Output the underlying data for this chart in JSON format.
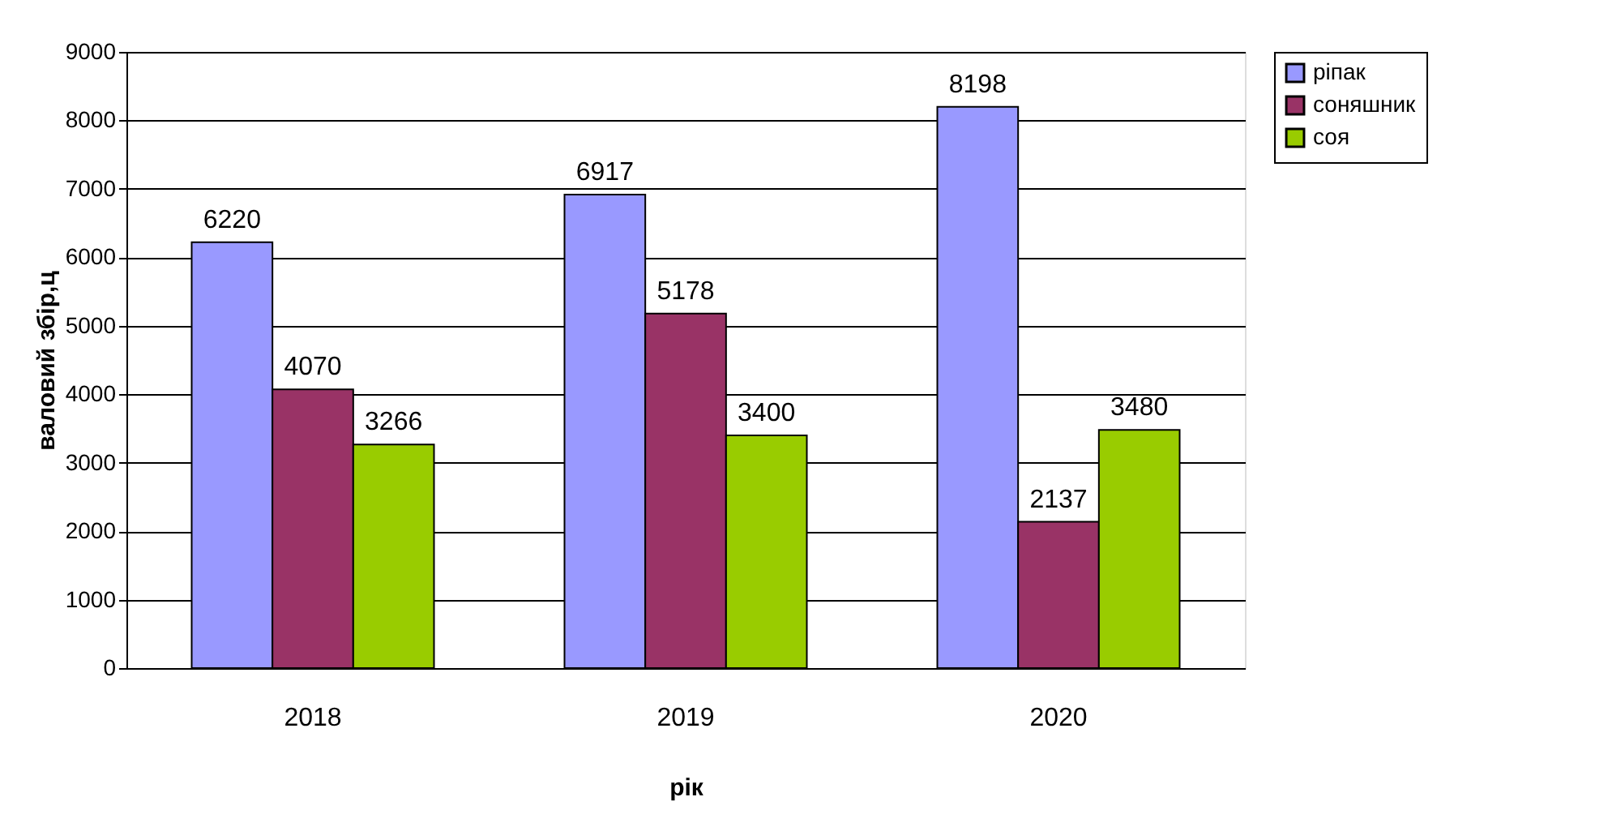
{
  "chart_data": {
    "type": "bar",
    "xlabel": "рік",
    "ylabel": "валовий збір,ц",
    "categories": [
      "2018",
      "2019",
      "2020"
    ],
    "series": [
      {
        "name": "ріпак",
        "color": "#9999ff",
        "values": [
          6220,
          6917,
          8198
        ]
      },
      {
        "name": "соняшник",
        "color": "#993366",
        "values": [
          4070,
          5178,
          2137
        ]
      },
      {
        "name": "соя",
        "color": "#99cc00",
        "values": [
          3266,
          3400,
          3480
        ]
      }
    ],
    "ylim": [
      0,
      9000
    ],
    "yticks": [
      0,
      1000,
      2000,
      3000,
      4000,
      5000,
      6000,
      7000,
      8000,
      9000
    ],
    "grid": "y",
    "legend": "right",
    "data_labels": true
  }
}
